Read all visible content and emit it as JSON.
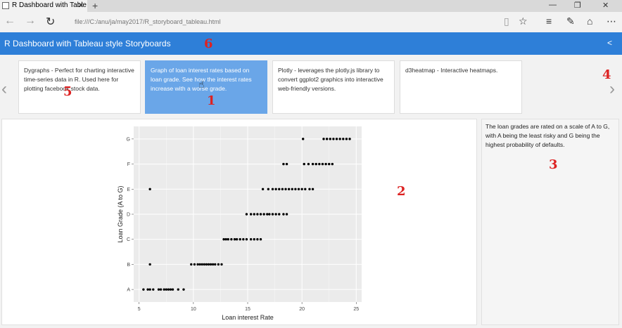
{
  "browser": {
    "tab_title": "R Dashboard with Table",
    "tab_close": "✕",
    "new_tab": "+",
    "url": "file:///C:/anu/ja/may2017/R_storyboard_tableau.html",
    "window_controls": [
      "—",
      "❐",
      "✕"
    ]
  },
  "header": {
    "title": "R Dashboard with Tableau style Storyboards",
    "share_icon": "share-icon"
  },
  "storyboard": {
    "cards": [
      {
        "text": "Dygraphs - Perfect for charting interactive time-series data in R. Used here for plotting facebook stock data."
      },
      {
        "text": "Graph of loan interest rates based on loan grade. See how the interest rates increase with a worse grade."
      },
      {
        "text": "Plotly - leverages the plotly.js library to convert ggplot2 graphics into interactive web-friendly versions."
      },
      {
        "text": "d3heatmap - Interactive heatmaps."
      }
    ],
    "active_index": 1
  },
  "side_note": "The loan grades are rated on a scale of A to G, with A being the least risky and G being the highest probability of defaults.",
  "annotations": {
    "n1": "1",
    "n2": "2",
    "n3": "3",
    "n4": "4",
    "n5": "5",
    "n6": "6"
  },
  "colors": {
    "header": "#2e7fd8",
    "active_card": "#6aa6e8",
    "annotation": "#dd2222",
    "plot_bg": "#ebebeb"
  },
  "chart_data": {
    "type": "scatter",
    "xlabel": "Loan interest Rate",
    "ylabel": "Loan Grade (A to G)",
    "x_ticks": [
      5,
      10,
      15,
      20,
      25
    ],
    "xlim": [
      4.5,
      25.5
    ],
    "categories": [
      "A",
      "B",
      "C",
      "D",
      "E",
      "F",
      "G"
    ],
    "grid": true,
    "points": [
      {
        "grade": "A",
        "x": [
          5.4,
          5.8,
          6.0,
          6.3,
          6.8,
          7.0,
          7.3,
          7.5,
          7.7,
          7.9,
          8.1,
          8.6,
          9.1
        ]
      },
      {
        "grade": "B",
        "x": [
          6.0,
          9.8,
          10.1,
          10.4,
          10.6,
          10.8,
          11.0,
          11.2,
          11.4,
          11.6,
          11.8,
          12.0,
          12.3,
          12.6
        ]
      },
      {
        "grade": "C",
        "x": [
          12.8,
          13.0,
          13.2,
          13.5,
          13.8,
          14.0,
          14.3,
          14.6,
          14.9,
          15.3,
          15.6,
          15.9,
          16.2
        ]
      },
      {
        "grade": "D",
        "x": [
          14.9,
          15.3,
          15.6,
          15.9,
          16.2,
          16.5,
          16.8,
          17.0,
          17.3,
          17.6,
          17.9,
          18.3,
          18.6
        ]
      },
      {
        "grade": "E",
        "x": [
          6.0,
          16.4,
          16.9,
          17.3,
          17.6,
          17.9,
          18.2,
          18.5,
          18.8,
          19.1,
          19.4,
          19.7,
          20.0,
          20.3,
          20.7,
          21.0
        ]
      },
      {
        "grade": "F",
        "x": [
          18.3,
          18.6,
          20.2,
          20.6,
          21.0,
          21.3,
          21.6,
          21.9,
          22.2,
          22.5,
          22.8
        ]
      },
      {
        "grade": "G",
        "x": [
          20.1,
          22.0,
          22.3,
          22.6,
          22.9,
          23.2,
          23.5,
          23.8,
          24.1,
          24.4
        ]
      }
    ]
  }
}
